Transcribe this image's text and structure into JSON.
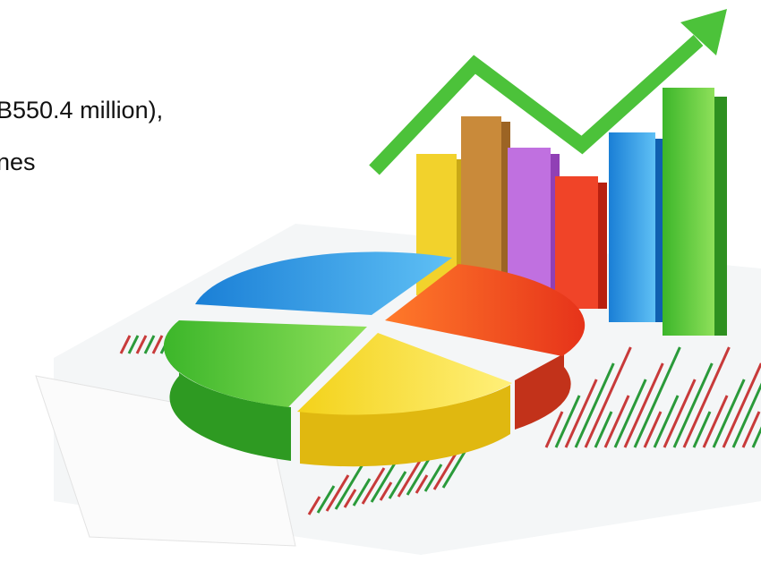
{
  "text": {
    "lines": [
      "B550.4 million),",
      "nes"
    ]
  }
}
